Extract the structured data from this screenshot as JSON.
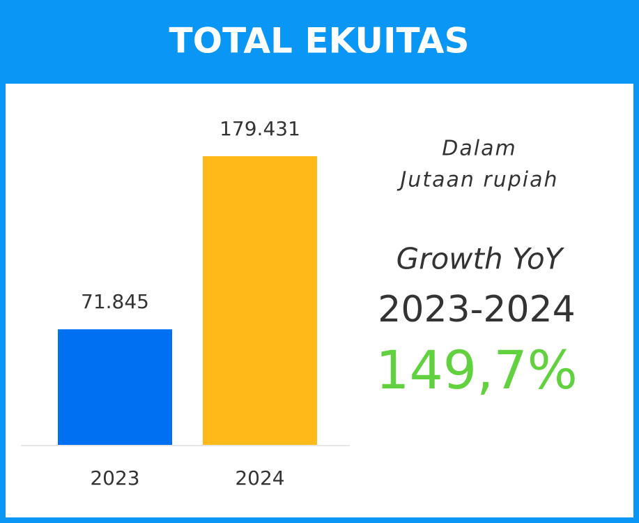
{
  "chart_data": {
    "type": "bar",
    "title": "TOTAL EKUITAS",
    "categories": [
      "2023",
      "2024"
    ],
    "values": [
      71845,
      179431
    ],
    "value_labels": [
      "71.845",
      "179.431"
    ],
    "colors": [
      "#0070f2",
      "#ffba1a"
    ],
    "annotations": {
      "unit_line1": "Dalam",
      "unit_line2": "Jutaan rupiah",
      "growth_label": "Growth YoY",
      "growth_period": "2023-2024",
      "growth_value": "149,7%"
    }
  }
}
